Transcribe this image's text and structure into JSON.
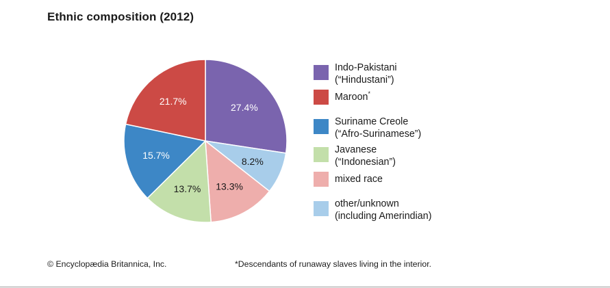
{
  "chart_data": {
    "type": "pie",
    "title": "Ethnic composition (2012)",
    "slices": [
      {
        "name_lines": [
          "Indo-Pakistani",
          "(“Hindustani”)"
        ],
        "value": 27.4,
        "label": "27.4%",
        "color": "#7a64ae"
      },
      {
        "name_lines": [
          "other/unknown",
          "(including Amerindian)"
        ],
        "value": 8.2,
        "label": "8.2%",
        "color": "#a8cdea"
      },
      {
        "name_lines": [
          "mixed race"
        ],
        "value": 13.3,
        "label": "13.3%",
        "color": "#eeaeac"
      },
      {
        "name_lines": [
          "Javanese",
          "(“Indonesian”)"
        ],
        "value": 13.7,
        "label": "13.7%",
        "color": "#c3dfaa"
      },
      {
        "name_lines": [
          "Suriname Creole",
          "(“Afro-Surinamese”)"
        ],
        "value": 15.7,
        "label": "15.7%",
        "color": "#3d87c6"
      },
      {
        "name_lines": [
          "Maroon"
        ],
        "name_sup": "*",
        "value": 21.7,
        "label": "21.7%",
        "color": "#cc4a45"
      }
    ],
    "slice_order": "clockwise from 12 o'clock",
    "legend_placement": "right",
    "legend_order": [
      0,
      5,
      4,
      3,
      2,
      1
    ]
  },
  "footer": {
    "copyright": "© Encyclopædia Britannica, Inc.",
    "footnote": "*Descendants of runaway slaves living in the interior."
  }
}
